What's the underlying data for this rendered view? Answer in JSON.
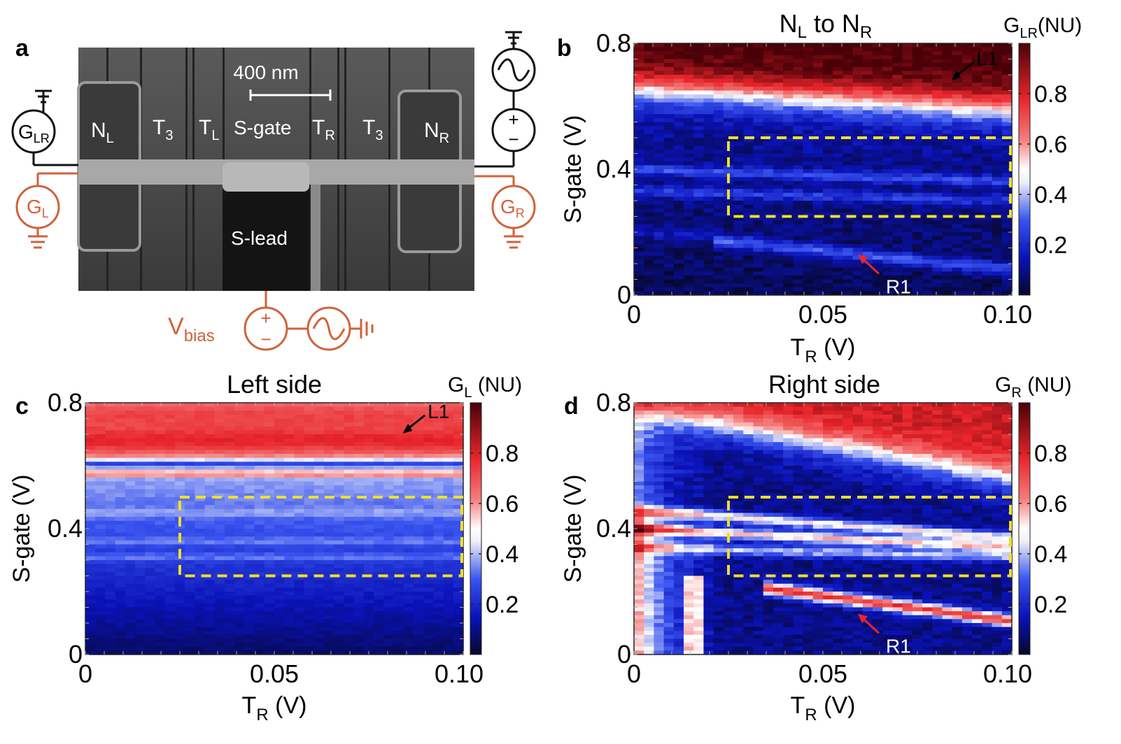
{
  "panel_a": {
    "letter": "a",
    "scale_bar": "400 nm",
    "labels": {
      "nl_main": "N",
      "nl_sub": "L",
      "t3_left_main": "T",
      "t3_left_sub": "3",
      "tl_main": "T",
      "tl_sub": "L",
      "sgate": "S-gate",
      "tr_main": "T",
      "tr_sub": "R",
      "t3_right_main": "T",
      "t3_right_sub": "3",
      "nr_main": "N",
      "nr_sub": "R",
      "slead": "S-lead"
    },
    "circuit": {
      "glr_main": "G",
      "glr_sub": "LR",
      "gl_main": "G",
      "gl_sub": "L",
      "gr_main": "G",
      "gr_sub": "R",
      "vbias_main": "V",
      "vbias_sub": "bias",
      "plus": "+",
      "minus": "−"
    },
    "colors": {
      "circuit_black": "#111111",
      "circuit_orange": "#d0623b",
      "sem_gray": "#4a4a4a"
    }
  },
  "chart_data": [
    {
      "type": "heatmap",
      "panel": "b",
      "title_main": "N",
      "title_sub1": "L",
      "title_mid": " to N",
      "title_sub2": "R",
      "xlabel_main": "T",
      "xlabel_sub": "R",
      "xlabel_unit": " (V)",
      "ylabel": "S-gate (V)",
      "xlim": [
        0,
        0.1
      ],
      "ylim": [
        0,
        0.8
      ],
      "xticks": [
        "0",
        "0.05",
        "0.10"
      ],
      "yticks": [
        "0",
        "0.4",
        "0.8"
      ],
      "colorbar_main": "G",
      "colorbar_sub": "LR",
      "colorbar_unit": "(NU)",
      "colorbar_ticks": [
        "0.2",
        "0.4",
        "0.6",
        "0.8"
      ],
      "dashed_box": {
        "x": [
          0.025,
          0.1
        ],
        "y": [
          0.25,
          0.5
        ]
      },
      "annotations": [
        {
          "text": "L1",
          "x": 0.088,
          "y": 0.7,
          "color": "#000000"
        },
        {
          "text": "R1",
          "x": 0.06,
          "y": 0.13,
          "color": "#ffffff"
        }
      ]
    },
    {
      "type": "heatmap",
      "panel": "c",
      "title": "Left side",
      "xlabel_main": "T",
      "xlabel_sub": "R",
      "xlabel_unit": " (V)",
      "ylabel": "S-gate (V)",
      "xlim": [
        0,
        0.1
      ],
      "ylim": [
        0,
        0.8
      ],
      "xticks": [
        "0",
        "0.05",
        "0.10"
      ],
      "yticks": [
        "0",
        "0.4",
        "0.8"
      ],
      "colorbar_main": "G",
      "colorbar_sub": "L",
      "colorbar_unit": " (NU)",
      "colorbar_ticks": [
        "0.2",
        "0.4",
        "0.6",
        "0.8"
      ],
      "dashed_box": {
        "x": [
          0.025,
          0.1
        ],
        "y": [
          0.25,
          0.5
        ]
      },
      "annotations": [
        {
          "text": "L1",
          "x": 0.088,
          "y": 0.72,
          "color": "#000000"
        }
      ]
    },
    {
      "type": "heatmap",
      "panel": "d",
      "title": "Right side",
      "xlabel_main": "T",
      "xlabel_sub": "R",
      "xlabel_unit": " (V)",
      "ylabel": "S-gate (V)",
      "xlim": [
        0,
        0.1
      ],
      "ylim": [
        0,
        0.8
      ],
      "xticks": [
        "0",
        "0.05",
        "0.10"
      ],
      "yticks": [
        "0",
        "0.4",
        "0.8"
      ],
      "colorbar_main": "G",
      "colorbar_sub": "R",
      "colorbar_unit": " (NU)",
      "colorbar_ticks": [
        "0.2",
        "0.4",
        "0.6",
        "0.8"
      ],
      "dashed_box": {
        "x": [
          0.025,
          0.1
        ],
        "y": [
          0.25,
          0.5
        ]
      },
      "annotations": [
        {
          "text": "R1",
          "x": 0.06,
          "y": 0.13,
          "color": "#ffffff"
        }
      ]
    }
  ],
  "colormap": {
    "low": "#07072a",
    "mid_low": "#1a2bd8",
    "mid": "#f4f4f4",
    "mid_high": "#e8252b",
    "high": "#4a0008"
  }
}
